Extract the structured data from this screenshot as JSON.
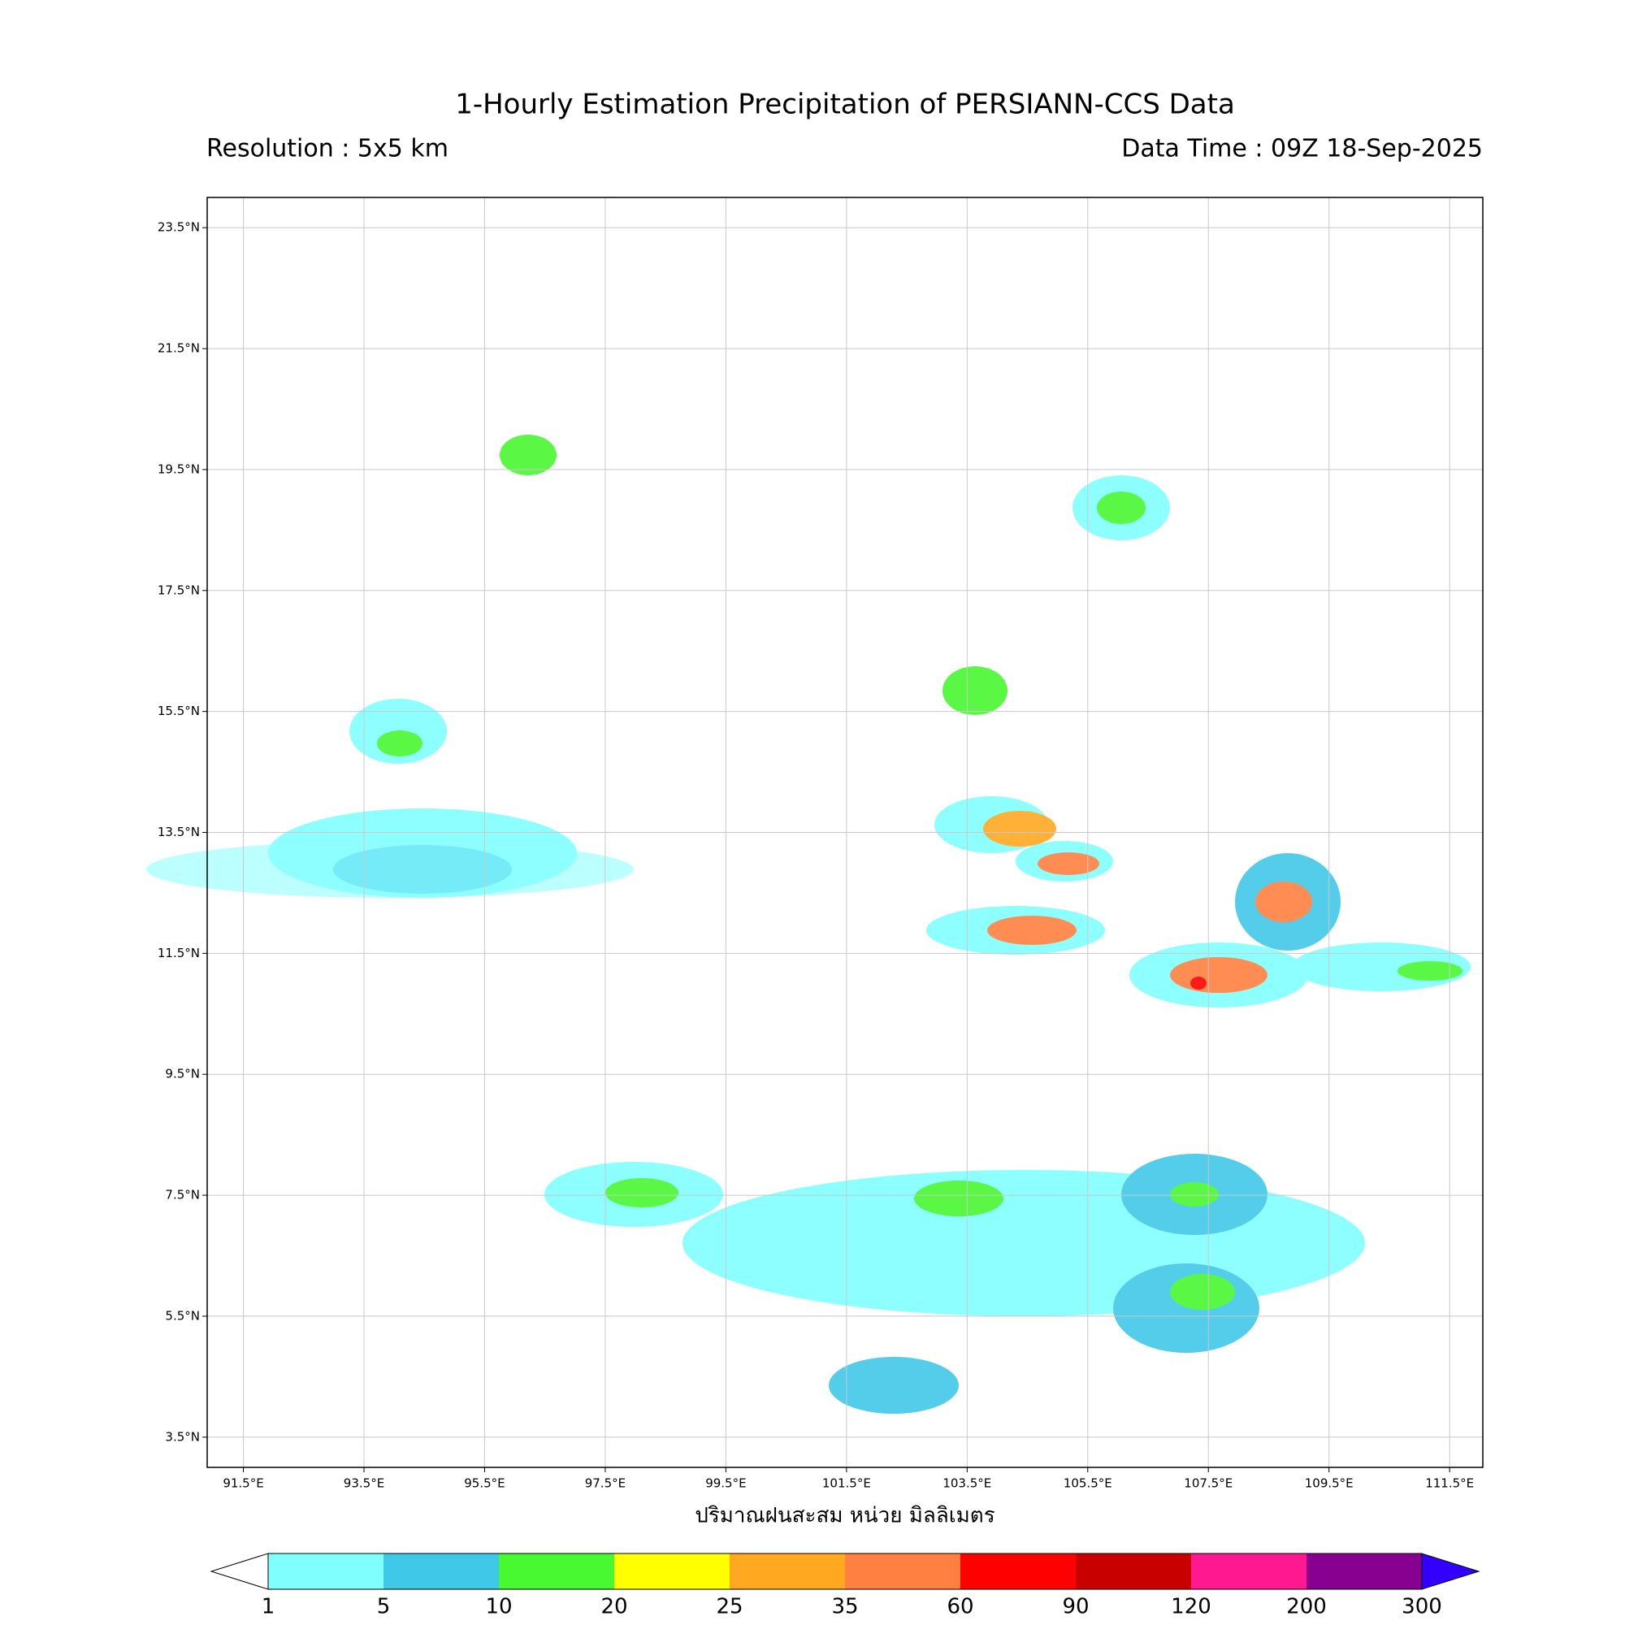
{
  "map_data": {
    "title": "1-Hourly Estimation Precipitation of PERSIANN-CCS Data",
    "resolution": "Resolution : 5x5 km",
    "data_time": "Data Time : 09Z 18-Sep-2025",
    "x_label": "ปริมาณฝนสะสม หน่วย มิลลิเมตร",
    "xlim": [
      90.9,
      112.05
    ],
    "ylim": [
      3.0,
      24.0
    ],
    "xticks": [
      {
        "value": 91.5,
        "label": "91.5°E"
      },
      {
        "value": 93.5,
        "label": "93.5°E"
      },
      {
        "value": 95.5,
        "label": "95.5°E"
      },
      {
        "value": 97.5,
        "label": "97.5°E"
      },
      {
        "value": 99.5,
        "label": "99.5°E"
      },
      {
        "value": 101.5,
        "label": "101.5°E"
      },
      {
        "value": 103.5,
        "label": "103.5°E"
      },
      {
        "value": 105.5,
        "label": "105.5°E"
      },
      {
        "value": 107.5,
        "label": "107.5°E"
      },
      {
        "value": 109.5,
        "label": "109.5°E"
      },
      {
        "value": 111.5,
        "label": "111.5°E"
      }
    ],
    "yticks": [
      {
        "value": 23.5,
        "label": "23.5°N"
      },
      {
        "value": 21.5,
        "label": "21.5°N"
      },
      {
        "value": 19.5,
        "label": "19.5°N"
      },
      {
        "value": 17.5,
        "label": "17.5°N"
      },
      {
        "value": 15.5,
        "label": "15.5°N"
      },
      {
        "value": 13.5,
        "label": "13.5°N"
      },
      {
        "value": 11.5,
        "label": "11.5°N"
      },
      {
        "value": 9.5,
        "label": "9.5°N"
      },
      {
        "value": 7.5,
        "label": "7.5°N"
      },
      {
        "value": 5.5,
        "label": "5.5°N"
      },
      {
        "value": 3.5,
        "label": "3.5°N"
      }
    ],
    "grid": true,
    "colorbar": {
      "levels": [
        1,
        5,
        10,
        20,
        25,
        35,
        60,
        90,
        120,
        200,
        300
      ],
      "colors": [
        "#80ffff",
        "#40c8e8",
        "#48f830",
        "#ffff00",
        "#ffa820",
        "#ff8040",
        "#ff0000",
        "#c80000",
        "#ff1890",
        "#880090"
      ],
      "under_color": "#ffffff",
      "over_color": "#3300ff"
    }
  }
}
